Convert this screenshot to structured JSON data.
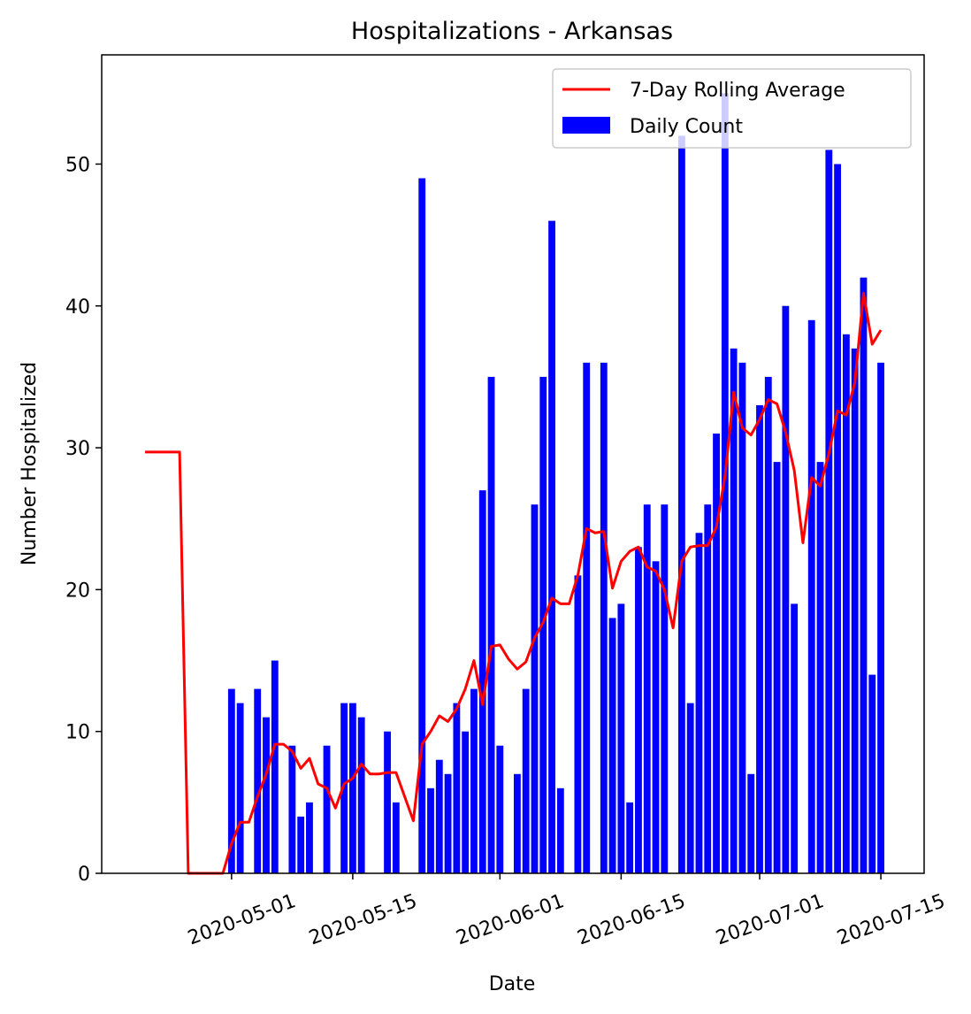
{
  "chart_data": {
    "type": "bar",
    "title": "Hospitalizations - Arkansas",
    "xlabel": "Date",
    "ylabel": "Number Hospitalized",
    "xlim": [
      "2020-04-16",
      "2020-07-20"
    ],
    "ylim": [
      0,
      57.7
    ],
    "x_ticks": [
      "2020-05-01",
      "2020-05-15",
      "2020-06-01",
      "2020-06-15",
      "2020-07-01",
      "2020-07-15"
    ],
    "y_ticks": [
      0,
      10,
      20,
      30,
      40,
      50
    ],
    "legend": {
      "placement": "upper right",
      "entries": [
        {
          "label": "7-Day Rolling Average",
          "color": "#ff0000",
          "kind": "line"
        },
        {
          "label": "Daily Count",
          "color": "#0000ff",
          "kind": "patch"
        }
      ]
    },
    "series": [
      {
        "name": "Daily Count",
        "type": "bar",
        "color": "#0000ff",
        "points": [
          [
            "2020-05-01",
            13
          ],
          [
            "2020-05-02",
            12
          ],
          [
            "2020-05-04",
            13
          ],
          [
            "2020-05-05",
            11
          ],
          [
            "2020-05-06",
            15
          ],
          [
            "2020-05-08",
            9
          ],
          [
            "2020-05-09",
            4
          ],
          [
            "2020-05-10",
            5
          ],
          [
            "2020-05-12",
            9
          ],
          [
            "2020-05-14",
            12
          ],
          [
            "2020-05-15",
            12
          ],
          [
            "2020-05-16",
            11
          ],
          [
            "2020-05-19",
            10
          ],
          [
            "2020-05-20",
            5
          ],
          [
            "2020-05-23",
            49
          ],
          [
            "2020-05-24",
            6
          ],
          [
            "2020-05-25",
            8
          ],
          [
            "2020-05-26",
            7
          ],
          [
            "2020-05-27",
            12
          ],
          [
            "2020-05-28",
            10
          ],
          [
            "2020-05-29",
            13
          ],
          [
            "2020-05-30",
            27
          ],
          [
            "2020-05-31",
            35
          ],
          [
            "2020-06-01",
            9
          ],
          [
            "2020-06-03",
            7
          ],
          [
            "2020-06-04",
            13
          ],
          [
            "2020-06-05",
            26
          ],
          [
            "2020-06-06",
            35
          ],
          [
            "2020-06-07",
            46
          ],
          [
            "2020-06-08",
            6
          ],
          [
            "2020-06-10",
            21
          ],
          [
            "2020-06-11",
            36
          ],
          [
            "2020-06-13",
            36
          ],
          [
            "2020-06-14",
            18
          ],
          [
            "2020-06-15",
            19
          ],
          [
            "2020-06-16",
            5
          ],
          [
            "2020-06-17",
            23
          ],
          [
            "2020-06-18",
            26
          ],
          [
            "2020-06-19",
            22
          ],
          [
            "2020-06-20",
            26
          ],
          [
            "2020-06-22",
            52
          ],
          [
            "2020-06-23",
            12
          ],
          [
            "2020-06-24",
            24
          ],
          [
            "2020-06-25",
            26
          ],
          [
            "2020-06-26",
            31
          ],
          [
            "2020-06-27",
            55
          ],
          [
            "2020-06-28",
            37
          ],
          [
            "2020-06-29",
            36
          ],
          [
            "2020-06-30",
            7
          ],
          [
            "2020-07-01",
            33
          ],
          [
            "2020-07-02",
            35
          ],
          [
            "2020-07-03",
            29
          ],
          [
            "2020-07-04",
            40
          ],
          [
            "2020-07-05",
            19
          ],
          [
            "2020-07-07",
            39
          ],
          [
            "2020-07-08",
            29
          ],
          [
            "2020-07-09",
            51
          ],
          [
            "2020-07-10",
            50
          ],
          [
            "2020-07-11",
            38
          ],
          [
            "2020-07-12",
            37
          ],
          [
            "2020-07-13",
            42
          ],
          [
            "2020-07-14",
            14
          ],
          [
            "2020-07-15",
            36
          ]
        ]
      },
      {
        "name": "7-Day Rolling Average",
        "type": "line",
        "color": "#ff0000",
        "points": [
          [
            "2020-04-21",
            29.7
          ],
          [
            "2020-04-25",
            29.7
          ],
          [
            "2020-04-26",
            0
          ],
          [
            "2020-04-30",
            0
          ],
          [
            "2020-05-01",
            2.1
          ],
          [
            "2020-05-02",
            3.6
          ],
          [
            "2020-05-03",
            3.6
          ],
          [
            "2020-05-04",
            5.4
          ],
          [
            "2020-05-05",
            7.0
          ],
          [
            "2020-05-06",
            9.1
          ],
          [
            "2020-05-07",
            9.1
          ],
          [
            "2020-05-08",
            8.6
          ],
          [
            "2020-05-09",
            7.4
          ],
          [
            "2020-05-10",
            8.1
          ],
          [
            "2020-05-11",
            6.3
          ],
          [
            "2020-05-12",
            6.0
          ],
          [
            "2020-05-13",
            4.6
          ],
          [
            "2020-05-14",
            6.3
          ],
          [
            "2020-05-15",
            6.7
          ],
          [
            "2020-05-16",
            7.7
          ],
          [
            "2020-05-17",
            7.0
          ],
          [
            "2020-05-18",
            7.0
          ],
          [
            "2020-05-19",
            7.1
          ],
          [
            "2020-05-20",
            7.1
          ],
          [
            "2020-05-22",
            3.7
          ],
          [
            "2020-05-23",
            9.1
          ],
          [
            "2020-05-24",
            10.0
          ],
          [
            "2020-05-25",
            11.1
          ],
          [
            "2020-05-26",
            10.7
          ],
          [
            "2020-05-27",
            11.6
          ],
          [
            "2020-05-28",
            13.0
          ],
          [
            "2020-05-29",
            15.0
          ],
          [
            "2020-05-30",
            11.9
          ],
          [
            "2020-05-31",
            16.0
          ],
          [
            "2020-06-01",
            16.1
          ],
          [
            "2020-06-02",
            15.1
          ],
          [
            "2020-06-03",
            14.4
          ],
          [
            "2020-06-04",
            14.9
          ],
          [
            "2020-06-05",
            16.6
          ],
          [
            "2020-06-06",
            17.7
          ],
          [
            "2020-06-07",
            19.4
          ],
          [
            "2020-06-08",
            19.0
          ],
          [
            "2020-06-09",
            19.0
          ],
          [
            "2020-06-10",
            21.0
          ],
          [
            "2020-06-11",
            24.3
          ],
          [
            "2020-06-12",
            24.0
          ],
          [
            "2020-06-13",
            24.1
          ],
          [
            "2020-06-14",
            20.1
          ],
          [
            "2020-06-15",
            22.0
          ],
          [
            "2020-06-16",
            22.7
          ],
          [
            "2020-06-17",
            23.0
          ],
          [
            "2020-06-18",
            21.6
          ],
          [
            "2020-06-19",
            21.3
          ],
          [
            "2020-06-20",
            20.0
          ],
          [
            "2020-06-21",
            17.3
          ],
          [
            "2020-06-22",
            22.0
          ],
          [
            "2020-06-23",
            23.0
          ],
          [
            "2020-06-24",
            23.1
          ],
          [
            "2020-06-25",
            23.1
          ],
          [
            "2020-06-26",
            24.4
          ],
          [
            "2020-06-27",
            28.0
          ],
          [
            "2020-06-28",
            33.9
          ],
          [
            "2020-06-29",
            31.4
          ],
          [
            "2020-06-30",
            30.9
          ],
          [
            "2020-07-01",
            32.0
          ],
          [
            "2020-07-02",
            33.4
          ],
          [
            "2020-07-03",
            33.1
          ],
          [
            "2020-07-04",
            31.1
          ],
          [
            "2020-07-05",
            28.4
          ],
          [
            "2020-07-06",
            23.3
          ],
          [
            "2020-07-07",
            27.9
          ],
          [
            "2020-07-08",
            27.3
          ],
          [
            "2020-07-09",
            29.6
          ],
          [
            "2020-07-10",
            32.6
          ],
          [
            "2020-07-11",
            32.3
          ],
          [
            "2020-07-12",
            34.6
          ],
          [
            "2020-07-13",
            40.9
          ],
          [
            "2020-07-14",
            37.3
          ],
          [
            "2020-07-15",
            38.3
          ]
        ]
      }
    ]
  }
}
